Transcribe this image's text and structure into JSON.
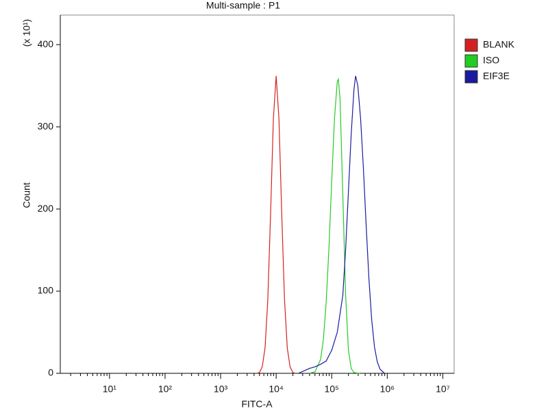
{
  "chart_data": {
    "type": "histogram_overlay",
    "title": "Multi-sample : P1",
    "x_label": "FITC-A",
    "y_label": "Count",
    "y_multiplier": "(x 10¹)",
    "x_log": true,
    "xlim": [
      1.3,
      16000000
    ],
    "ylim": [
      0,
      436
    ],
    "xticks": [
      {
        "value": 10,
        "label": "10¹"
      },
      {
        "value": 100,
        "label": "10²"
      },
      {
        "value": 1000,
        "label": "10³"
      },
      {
        "value": 10000,
        "label": "10⁴"
      },
      {
        "value": 100000,
        "label": "10⁵"
      },
      {
        "value": 1000000,
        "label": "10⁶"
      },
      {
        "value": 10000000,
        "label": "10⁷"
      }
    ],
    "yticks": [
      0,
      100,
      200,
      300,
      400
    ],
    "legend": "right",
    "series": [
      {
        "name": "BLANK",
        "color": "#d42020",
        "x": [
          4467,
          5012,
          5623,
          6310,
          7079,
          7943,
          8913,
          10000,
          11220,
          12589,
          14125,
          15849,
          17783,
          19953,
          22387
        ],
        "values": [
          0,
          1,
          8,
          31,
          90,
          195,
          310,
          362,
          310,
          195,
          90,
          31,
          8,
          1,
          0
        ]
      },
      {
        "name": "ISO",
        "color": "#22cc22",
        "x": [
          39811,
          50119,
          63096,
          70795,
          79433,
          89125,
          100000,
          112202,
          125893,
          131826,
          141254,
          158489,
          177828,
          199526,
          223872,
          251189,
          316228
        ],
        "values": [
          0,
          2,
          17,
          41,
          86,
          152,
          234,
          310,
          355,
          358,
          334,
          217,
          96,
          29,
          6,
          1,
          0
        ]
      },
      {
        "name": "EIF3E",
        "color": "#1a1aa0",
        "x": [
          25119,
          31623,
          39811,
          50119,
          63096,
          79433,
          100000,
          125893,
          158489,
          177828,
          199526,
          223872,
          251189,
          269153,
          295121,
          331131,
          371535,
          416869,
          467735,
          524807,
          588844,
          660693,
          741310,
          891251
        ],
        "values": [
          0,
          3,
          6,
          8,
          11,
          15,
          28,
          50,
          95,
          150,
          220,
          290,
          345,
          362,
          350,
          310,
          250,
          180,
          115,
          65,
          32,
          14,
          5,
          0
        ]
      }
    ]
  }
}
